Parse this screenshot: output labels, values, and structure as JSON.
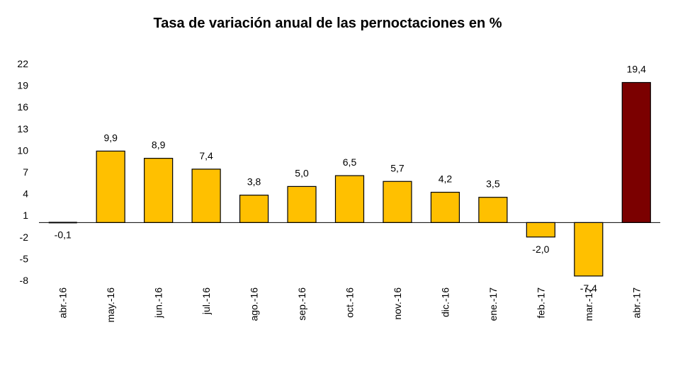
{
  "chart_data": {
    "type": "bar",
    "title": "Tasa de variación anual de las pernoctaciones en %",
    "xlabel": "",
    "ylabel": "",
    "categories": [
      "abr.-16",
      "may.-16",
      "jun.-16",
      "jul.-16",
      "ago.-16",
      "sep.-16",
      "oct.-16",
      "nov.-16",
      "dic.-16",
      "ene.-17",
      "feb.-17",
      "mar.-17",
      "abr.-17"
    ],
    "values": [
      -0.1,
      9.9,
      8.9,
      7.4,
      3.8,
      5.0,
      6.5,
      5.7,
      4.2,
      3.5,
      -2.0,
      -7.4,
      19.4
    ],
    "value_labels": [
      "-0,1",
      "9,9",
      "8,9",
      "7,4",
      "3,8",
      "5,0",
      "6,5",
      "5,7",
      "4,2",
      "3,5",
      "-2,0",
      "-7,4",
      "19,4"
    ],
    "yticks": [
      22,
      19,
      16,
      13,
      10,
      7,
      4,
      1,
      -2,
      -5,
      -8
    ],
    "ylim": [
      -8,
      22
    ],
    "grid": false,
    "legend": "none",
    "colors": {
      "default": "#FFC000",
      "highlight": "#7B0000",
      "border": "#000000"
    },
    "highlight_index": 12
  }
}
